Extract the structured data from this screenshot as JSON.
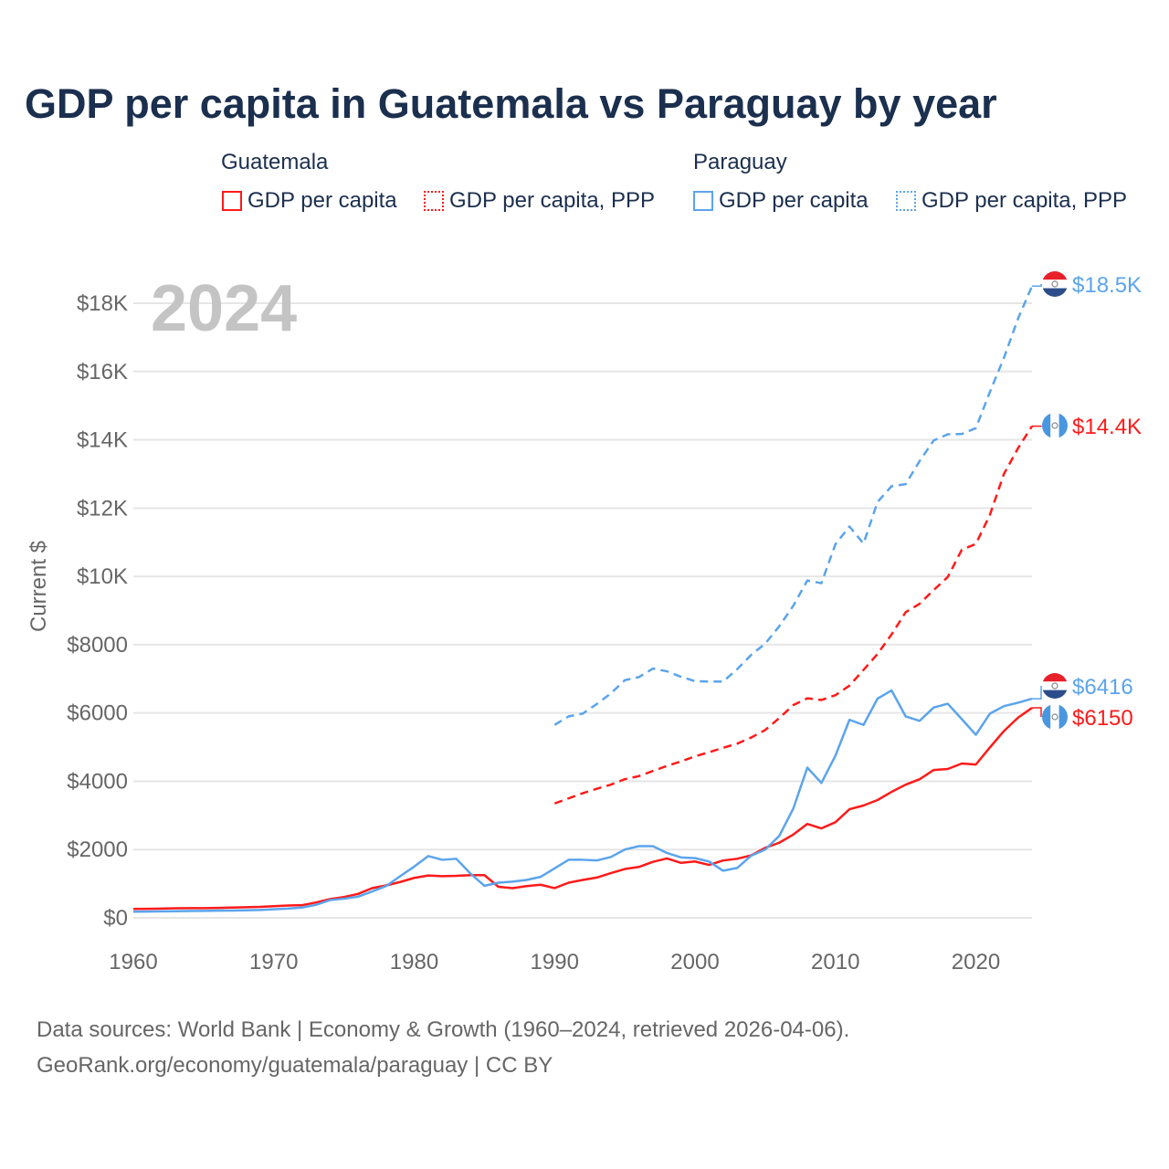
{
  "chart_data": {
    "type": "line",
    "title": "GDP per capita in Guatemala vs Paraguay by year",
    "ylabel": "Current $",
    "xlabel": "",
    "year_label": "2024",
    "xlim": [
      1960,
      2024
    ],
    "ylim": [
      0,
      19000
    ],
    "x_ticks": [
      1960,
      1970,
      1980,
      1990,
      2000,
      2010,
      2020
    ],
    "x_tick_labels": [
      "1960",
      "1970",
      "1980",
      "1990",
      "2000",
      "2010",
      "2020"
    ],
    "y_ticks": [
      0,
      2000,
      4000,
      6000,
      8000,
      10000,
      12000,
      14000,
      16000,
      18000
    ],
    "y_tick_labels": [
      "$0",
      "$2000",
      "$4000",
      "$6000",
      "$8000",
      "$10K",
      "$12K",
      "$14K",
      "$16K",
      "$18K"
    ],
    "grid": true,
    "legend": {
      "position": "top",
      "groups": [
        {
          "name": "Guatemala",
          "items": [
            "GDP per capita",
            "GDP per capita, PPP"
          ]
        },
        {
          "name": "Paraguay",
          "items": [
            "GDP per capita",
            "GDP per capita, PPP"
          ]
        }
      ]
    },
    "colors": {
      "guatemala": "#ff1a1a",
      "paraguay": "#5ba4ec"
    },
    "series": [
      {
        "name": "Guatemala GDP per capita",
        "country": "guatemala",
        "dashed": false,
        "start": 1960,
        "end_label": "$6150",
        "values": [
          260,
          265,
          270,
          280,
          285,
          285,
          290,
          300,
          310,
          320,
          340,
          360,
          370,
          450,
          550,
          610,
          700,
          870,
          950,
          1050,
          1170,
          1240,
          1220,
          1230,
          1250,
          1250,
          910,
          870,
          930,
          970,
          870,
          1030,
          1110,
          1180,
          1310,
          1430,
          1490,
          1640,
          1740,
          1610,
          1650,
          1550,
          1680,
          1730,
          1830,
          2050,
          2200,
          2440,
          2750,
          2620,
          2800,
          3180,
          3290,
          3450,
          3690,
          3900,
          4060,
          4330,
          4360,
          4520,
          4490,
          4990,
          5470,
          5860,
          6150
        ]
      },
      {
        "name": "Guatemala GDP per capita, PPP",
        "country": "guatemala",
        "dashed": true,
        "start": 1990,
        "end_label": "$14.4K",
        "values": [
          3350,
          3500,
          3650,
          3780,
          3900,
          4060,
          4150,
          4300,
          4450,
          4580,
          4730,
          4850,
          4980,
          5100,
          5280,
          5500,
          5850,
          6230,
          6430,
          6380,
          6520,
          6800,
          7260,
          7730,
          8300,
          8950,
          9200,
          9600,
          9980,
          10780,
          10950,
          11800,
          13000,
          13750,
          14400
        ]
      },
      {
        "name": "Paraguay GDP per capita",
        "country": "paraguay",
        "dashed": false,
        "start": 1960,
        "end_label": "$6416",
        "values": [
          180,
          185,
          190,
          195,
          200,
          205,
          210,
          215,
          220,
          230,
          250,
          270,
          300,
          380,
          520,
          560,
          620,
          770,
          930,
          1220,
          1500,
          1810,
          1700,
          1730,
          1300,
          940,
          1030,
          1060,
          1110,
          1200,
          1450,
          1700,
          1700,
          1680,
          1780,
          2000,
          2100,
          2100,
          1900,
          1770,
          1750,
          1650,
          1380,
          1460,
          1820,
          2000,
          2400,
          3200,
          4400,
          3950,
          4750,
          5800,
          5650,
          6420,
          6660,
          5900,
          5770,
          6160,
          6270,
          5820,
          5360,
          5980,
          6200,
          6300,
          6416
        ]
      },
      {
        "name": "Paraguay GDP per capita, PPP",
        "country": "paraguay",
        "dashed": true,
        "start": 1990,
        "end_label": "$18.5K",
        "values": [
          5650,
          5900,
          5980,
          6260,
          6570,
          6960,
          7050,
          7300,
          7220,
          7060,
          6930,
          6920,
          6920,
          7280,
          7700,
          8030,
          8540,
          9140,
          9880,
          9800,
          10940,
          11460,
          10960,
          12180,
          12640,
          12700,
          13380,
          13980,
          14160,
          14170,
          14340,
          15400,
          16400,
          17540,
          18500
        ]
      }
    ]
  },
  "legend": {
    "guatemala": "Guatemala",
    "paraguay": "Paraguay",
    "gdp": "GDP per capita",
    "ppp": "GDP per capita, PPP"
  },
  "footer": {
    "line1": "Data sources: World Bank | Economy & Growth (1960–2024, retrieved 2026-04-06).",
    "line2": "GeoRank.org/economy/guatemala/paraguay | CC BY"
  }
}
